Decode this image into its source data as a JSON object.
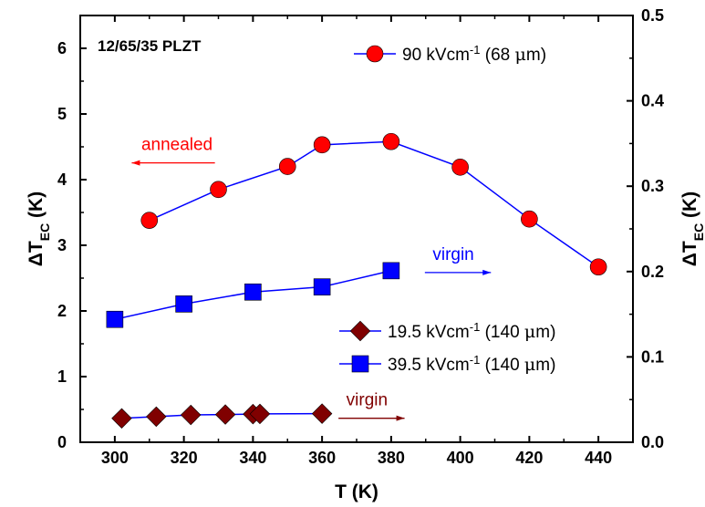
{
  "chart_data": {
    "type": "line",
    "panel_label": "12/65/35 PLZT",
    "xlabel": {
      "main": "T (K)"
    },
    "ylabel_left": {
      "main": "ΔT",
      "sub": "EC",
      "unit": " (K)"
    },
    "ylabel_right": {
      "main": "ΔT",
      "sub": "EC",
      "unit": " (K)"
    },
    "xlim": [
      290,
      450
    ],
    "ylim_left": [
      0,
      6.5
    ],
    "ylim_right": [
      0,
      0.5
    ],
    "x_ticks": [
      300,
      320,
      340,
      360,
      380,
      400,
      420,
      440
    ],
    "x_tick_labels": [
      "300",
      "320",
      "340",
      "360",
      "380",
      "400",
      "420",
      "440"
    ],
    "y_left_ticks": [
      0,
      1,
      2,
      3,
      4,
      5,
      6
    ],
    "y_left_tick_labels": [
      "0",
      "1",
      "2",
      "3",
      "4",
      "5",
      "6"
    ],
    "y_right_ticks": [
      0.0,
      0.1,
      0.2,
      0.3,
      0.4,
      0.5
    ],
    "y_right_tick_labels": [
      "0.0",
      "0.1",
      "0.2",
      "0.3",
      "0.4",
      "0.5"
    ],
    "series": [
      {
        "name": "90 kVcm-1 (68 μm)",
        "legend": {
          "pre": "90 kVcm",
          "sup": "-1",
          "post": " (68 ",
          "mu": "μ",
          "post2": "m)"
        },
        "axis": "left",
        "marker": "circle",
        "color": "#ff0000",
        "line_color": "#0000ff",
        "x": [
          310,
          330,
          350,
          360,
          380,
          400,
          420,
          440
        ],
        "y": [
          3.38,
          3.85,
          4.2,
          4.53,
          4.58,
          4.19,
          3.4,
          2.67
        ]
      },
      {
        "name": "19.5 kVcm-1 (140 μm)",
        "legend": {
          "pre": "19.5 kVcm",
          "sup": "-1",
          "post": " (140 ",
          "mu": "μ",
          "post2": "m)"
        },
        "axis": "right",
        "marker": "diamond",
        "color": "#800000",
        "line_color": "#0000ff",
        "x": [
          302,
          312,
          322,
          332,
          340,
          342,
          360
        ],
        "y": [
          0.028,
          0.03,
          0.032,
          0.0325,
          0.033,
          0.0332,
          0.0335
        ]
      },
      {
        "name": "39.5 kVcm-1 (140 μm)",
        "legend": {
          "pre": "39.5 kVcm",
          "sup": "-1",
          "post": " (140 ",
          "mu": "μ",
          "post2": "m)"
        },
        "axis": "right",
        "marker": "square",
        "color": "#0000ff",
        "line_color": "#0000ff",
        "x": [
          300,
          320,
          340,
          360,
          380
        ],
        "y": [
          0.144,
          0.162,
          0.176,
          0.182,
          0.201
        ]
      }
    ],
    "annotations": [
      {
        "text": "annealed",
        "color": "#ff0000",
        "x": 318,
        "y": 4.45,
        "arrow": "left"
      },
      {
        "text": "virgin",
        "color": "#0000ff",
        "x": 398,
        "y": 2.78,
        "arrow": "right"
      },
      {
        "text": "virgin",
        "color": "#800000",
        "x": 373,
        "y": 0.56,
        "arrow": "right"
      }
    ],
    "grid": false,
    "legend_placement": "top-right and middle-right"
  }
}
